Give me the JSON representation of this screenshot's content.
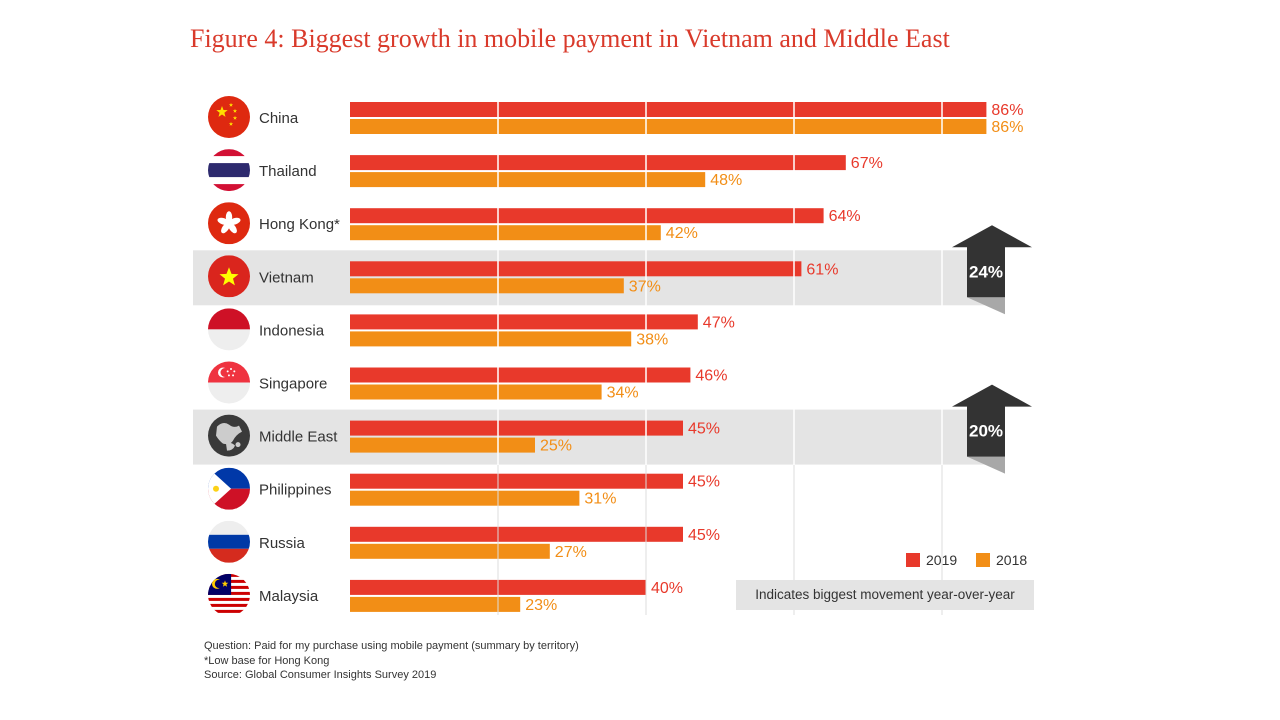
{
  "title": "Figure 4: Biggest growth in mobile payment in Vietnam and Middle East",
  "chart_data": {
    "type": "bar",
    "orientation": "horizontal",
    "title": "Figure 4: Biggest growth in mobile payment in Vietnam and Middle East",
    "categories": [
      "China",
      "Thailand",
      "Hong Kong*",
      "Vietnam",
      "Indonesia",
      "Singapore",
      "Middle East",
      "Philippines",
      "Russia",
      "Malaysia"
    ],
    "series": [
      {
        "name": "2019",
        "values": [
          86,
          67,
          64,
          61,
          47,
          46,
          45,
          45,
          45,
          40
        ],
        "labels": [
          "86%",
          "67%",
          "64%",
          "61%",
          "47%",
          "46%",
          "45%",
          "45%",
          "45%",
          "40%"
        ],
        "color": "#e8392b"
      },
      {
        "name": "2018",
        "values": [
          86,
          48,
          42,
          37,
          38,
          34,
          25,
          31,
          27,
          23
        ],
        "labels": [
          "86%",
          "48%",
          "42%",
          "37%",
          "38%",
          "34%",
          "25%",
          "31%",
          "27%",
          "23%"
        ],
        "color": "#f28e16"
      }
    ],
    "xlim": [
      0,
      90
    ],
    "grid": true,
    "legend": "bottom-right",
    "highlighted_rows": [
      "Vietnam",
      "Middle East"
    ],
    "annotations": [
      {
        "target": "Vietnam",
        "text": "24%",
        "shape": "up-arrow"
      },
      {
        "target": "Middle East",
        "text": "20%",
        "shape": "up-arrow"
      }
    ]
  },
  "flags": [
    "flag-china-icon",
    "flag-thailand-icon",
    "flag-hong-kong-icon",
    "flag-vietnam-icon",
    "flag-indonesia-icon",
    "flag-singapore-icon",
    "globe-middle-east-icon",
    "flag-philippines-icon",
    "flag-russia-icon",
    "flag-malaysia-icon"
  ],
  "legend_note": "Indicates biggest movement year-over-year",
  "footnotes": [
    "Question: Paid for my purchase using mobile payment (summary by territory)",
    "*Low base for Hong Kong",
    "Source: Global Consumer Insights Survey 2019"
  ],
  "colors": {
    "title": "#d93a2b",
    "arrow": "#333333",
    "highlight": "#e4e4e4"
  }
}
